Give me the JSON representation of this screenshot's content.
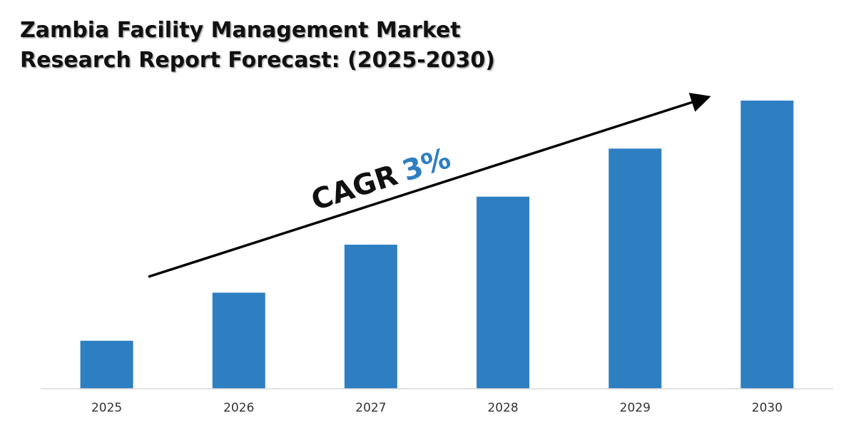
{
  "chart_data": {
    "type": "bar",
    "title_lines": [
      "Zambia Facility Management Market",
      "Research Report Forecast: (2025-2030)"
    ],
    "categories": [
      "2025",
      "2026",
      "2027",
      "2028",
      "2029",
      "2030"
    ],
    "values": [
      1,
      2,
      3,
      4,
      5,
      6
    ],
    "ylim": [
      0,
      6.05
    ],
    "grid": false,
    "annotation": {
      "prefix": "CAGR",
      "value": "3%"
    },
    "colors": {
      "bar": "#2e7fc2",
      "cagr_value": "#2e7fc2",
      "axis": "#d9d9d9",
      "arrow": "#000000"
    }
  }
}
